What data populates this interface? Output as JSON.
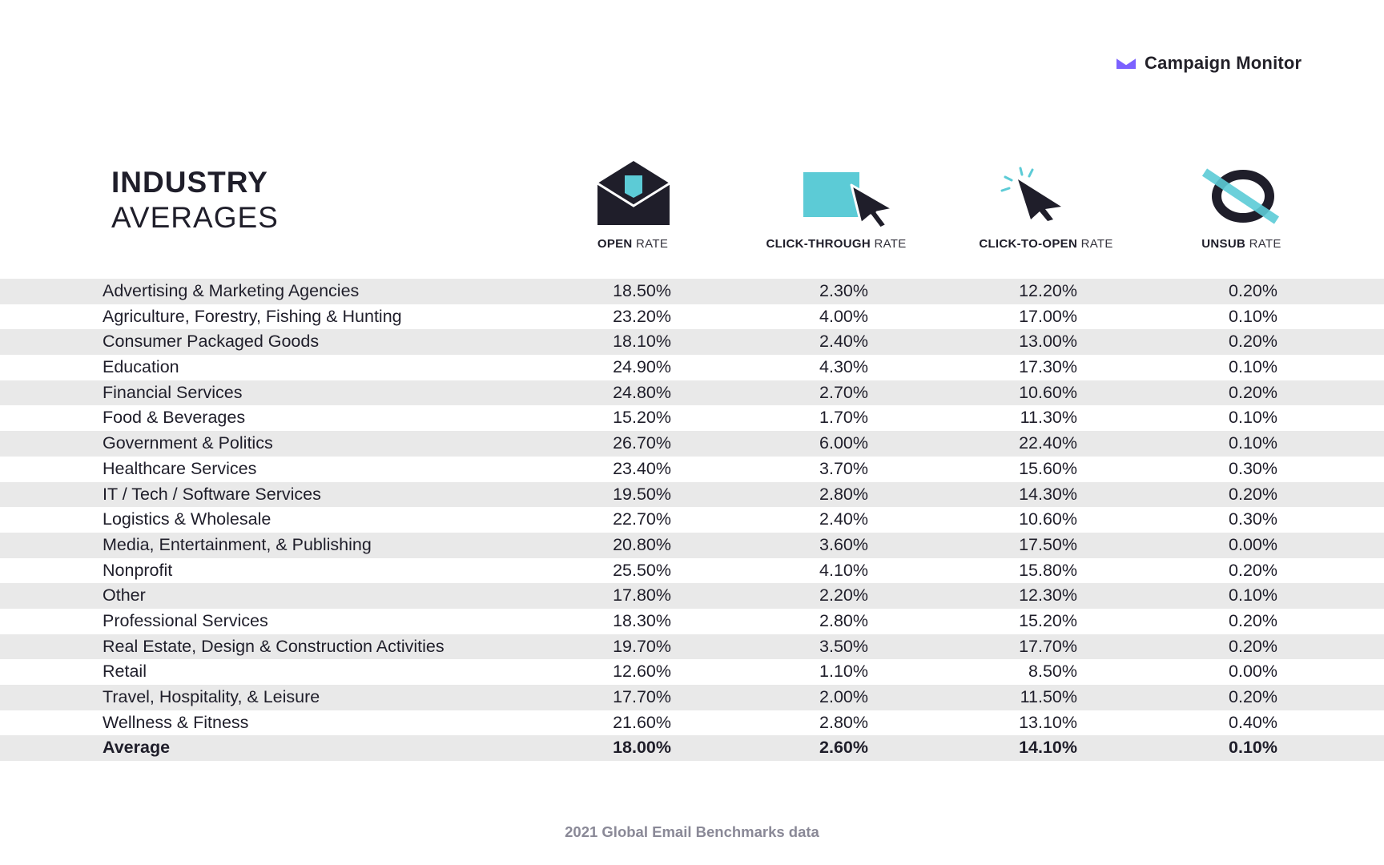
{
  "brand": {
    "logo_text": "Campaign Monitor",
    "accent": "#7b61ff"
  },
  "title": {
    "line1": "INDUSTRY",
    "line2": "AVERAGES"
  },
  "colors": {
    "navy": "#1f1e2a",
    "teal": "#5ccbd6",
    "row_shade": "#e9e9e9"
  },
  "columns": [
    {
      "key": "open",
      "label_bold": "OPEN",
      "label_rest": "RATE",
      "icon": "envelope-icon"
    },
    {
      "key": "ctr",
      "label_bold": "CLICK-THROUGH",
      "label_rest": "RATE",
      "icon": "cursor-box-icon"
    },
    {
      "key": "cto",
      "label_bold": "CLICK-TO-OPEN",
      "label_rest": "RATE",
      "icon": "cursor-click-icon"
    },
    {
      "key": "unsub",
      "label_bold": "UNSUB",
      "label_rest": "RATE",
      "icon": "unsubscribe-icon"
    }
  ],
  "chart_data": {
    "type": "table",
    "title": "INDUSTRY AVERAGES",
    "columns": [
      "OPEN RATE",
      "CLICK-THROUGH RATE",
      "CLICK-TO-OPEN RATE",
      "UNSUB RATE"
    ],
    "rows": [
      {
        "industry": "Advertising & Marketing Agencies",
        "open": "18.50%",
        "ctr": "2.30%",
        "cto": "12.20%",
        "unsub": "0.20%"
      },
      {
        "industry": "Agriculture, Forestry, Fishing & Hunting",
        "open": "23.20%",
        "ctr": "4.00%",
        "cto": "17.00%",
        "unsub": "0.10%"
      },
      {
        "industry": "Consumer Packaged Goods",
        "open": "18.10%",
        "ctr": "2.40%",
        "cto": "13.00%",
        "unsub": "0.20%"
      },
      {
        "industry": "Education",
        "open": "24.90%",
        "ctr": "4.30%",
        "cto": "17.30%",
        "unsub": "0.10%"
      },
      {
        "industry": "Financial Services",
        "open": "24.80%",
        "ctr": "2.70%",
        "cto": "10.60%",
        "unsub": "0.20%"
      },
      {
        "industry": "Food & Beverages",
        "open": "15.20%",
        "ctr": "1.70%",
        "cto": "11.30%",
        "unsub": "0.10%"
      },
      {
        "industry": "Government & Politics",
        "open": "26.70%",
        "ctr": "6.00%",
        "cto": "22.40%",
        "unsub": "0.10%"
      },
      {
        "industry": "Healthcare Services",
        "open": "23.40%",
        "ctr": "3.70%",
        "cto": "15.60%",
        "unsub": "0.30%"
      },
      {
        "industry": "IT / Tech / Software Services",
        "open": "19.50%",
        "ctr": "2.80%",
        "cto": "14.30%",
        "unsub": "0.20%"
      },
      {
        "industry": "Logistics & Wholesale",
        "open": "22.70%",
        "ctr": "2.40%",
        "cto": "10.60%",
        "unsub": "0.30%"
      },
      {
        "industry": "Media, Entertainment, & Publishing",
        "open": "20.80%",
        "ctr": "3.60%",
        "cto": "17.50%",
        "unsub": "0.00%"
      },
      {
        "industry": "Nonprofit",
        "open": "25.50%",
        "ctr": "4.10%",
        "cto": "15.80%",
        "unsub": "0.20%"
      },
      {
        "industry": "Other",
        "open": "17.80%",
        "ctr": "2.20%",
        "cto": "12.30%",
        "unsub": "0.10%"
      },
      {
        "industry": "Professional Services",
        "open": "18.30%",
        "ctr": "2.80%",
        "cto": "15.20%",
        "unsub": "0.20%"
      },
      {
        "industry": "Real Estate, Design & Construction Activities",
        "open": "19.70%",
        "ctr": "3.50%",
        "cto": "17.70%",
        "unsub": "0.20%"
      },
      {
        "industry": "Retail",
        "open": "12.60%",
        "ctr": "1.10%",
        "cto": "8.50%",
        "unsub": "0.00%"
      },
      {
        "industry": "Travel, Hospitality, & Leisure",
        "open": "17.70%",
        "ctr": "2.00%",
        "cto": "11.50%",
        "unsub": "0.20%"
      },
      {
        "industry": "Wellness & Fitness",
        "open": "21.60%",
        "ctr": "2.80%",
        "cto": "13.10%",
        "unsub": "0.40%"
      },
      {
        "industry": "Average",
        "open": "18.00%",
        "ctr": "2.60%",
        "cto": "14.10%",
        "unsub": "0.10%"
      }
    ]
  },
  "footer": {
    "text": "2021 Global Email Benchmarks data"
  }
}
